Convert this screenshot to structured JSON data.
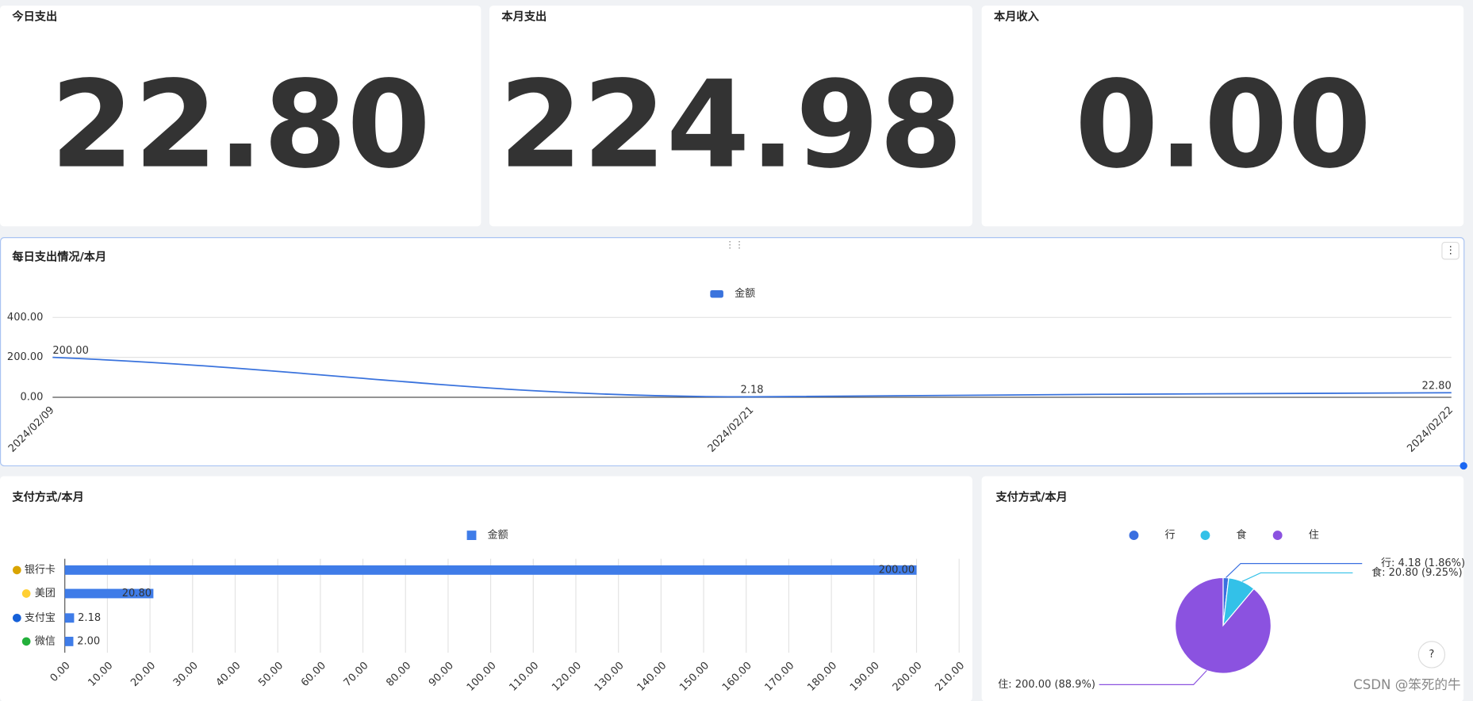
{
  "cards": [
    {
      "title": "今日支出",
      "value": "22.80",
      "color": "#fdbb2d"
    },
    {
      "title": "本月支出",
      "value": "224.98",
      "color": "#fb7f29"
    },
    {
      "title": "本月收入",
      "value": "0.00",
      "color": "#1b67f2"
    }
  ],
  "chart_data": [
    {
      "type": "line",
      "title": "每日支出情况/本月",
      "categories": [
        "2024/02/09",
        "2024/02/21",
        "2024/02/22"
      ],
      "series": [
        {
          "name": "金额",
          "color": "#3a73dd",
          "values": [
            200,
            2.18,
            22.8
          ],
          "value_labels": [
            "200.00",
            "2.18",
            "22.80"
          ]
        }
      ],
      "ylim": [
        0,
        400
      ],
      "yticks": [
        {
          "value": 0,
          "label": "0.00"
        },
        {
          "value": 200,
          "label": "200.00"
        },
        {
          "value": 400,
          "label": "400.00"
        }
      ],
      "grid": true,
      "smooth": true
    },
    {
      "type": "hbar",
      "title": "支付方式/本月",
      "categories": [
        "银行卡",
        "美团",
        "支付宝",
        "微信"
      ],
      "series": [
        {
          "name": "金额",
          "color": "#3f7ce8",
          "values": [
            200,
            20.8,
            2.18,
            2
          ],
          "value_labels": [
            "200.00",
            "20.80",
            "2.18",
            "2.00"
          ]
        }
      ],
      "xlim": [
        0,
        210
      ],
      "xticks": [
        {
          "value": 0,
          "label": "0.00"
        },
        {
          "value": 10,
          "label": "10.00"
        },
        {
          "value": 20,
          "label": "20.00"
        },
        {
          "value": 30,
          "label": "30.00"
        },
        {
          "value": 40,
          "label": "40.00"
        },
        {
          "value": 50,
          "label": "50.00"
        },
        {
          "value": 60,
          "label": "60.00"
        },
        {
          "value": 70,
          "label": "70.00"
        },
        {
          "value": 80,
          "label": "80.00"
        },
        {
          "value": 90,
          "label": "90.00"
        },
        {
          "value": 100,
          "label": "100.00"
        },
        {
          "value": 110,
          "label": "110.00"
        },
        {
          "value": 120,
          "label": "120.00"
        },
        {
          "value": 130,
          "label": "130.00"
        },
        {
          "value": 140,
          "label": "140.00"
        },
        {
          "value": 150,
          "label": "150.00"
        },
        {
          "value": 160,
          "label": "160.00"
        },
        {
          "value": 170,
          "label": "170.00"
        },
        {
          "value": 180,
          "label": "180.00"
        },
        {
          "value": 190,
          "label": "190.00"
        },
        {
          "value": 200,
          "label": "200.00"
        },
        {
          "value": 210,
          "label": "210.00"
        }
      ],
      "grid": true
    },
    {
      "type": "pie",
      "title": "支付方式/本月",
      "categories": [
        "行",
        "食",
        "住"
      ],
      "colors": [
        "#3a6fe0",
        "#33c1e8",
        "#8b52e0"
      ],
      "values": [
        4.18,
        20.8,
        200
      ],
      "value_labels": [
        "行: 4.18 (1.86%)",
        "食: 20.80 (9.25%)",
        "住: 200.00 (88.9%)"
      ]
    }
  ],
  "watermark": "CSDN @笨死的牛"
}
